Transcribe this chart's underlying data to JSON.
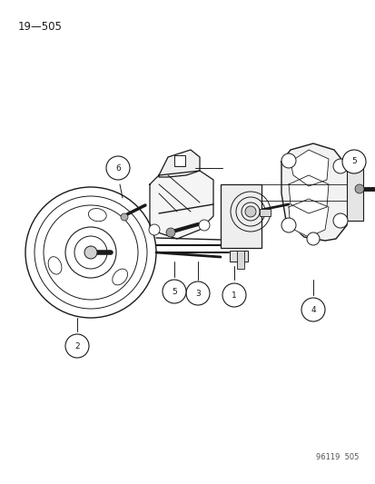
{
  "title_text": "19—505",
  "part_number": "96119  505",
  "bg_color": "#ffffff",
  "line_color": "#1a1a1a",
  "title_font_size": 8.5,
  "part_num_font_size": 6,
  "callout_font_size": 6,
  "callout_r": 0.018,
  "fig_w": 4.14,
  "fig_h": 5.33,
  "dpi": 100,
  "xlim": [
    0,
    414
  ],
  "ylim": [
    0,
    533
  ]
}
